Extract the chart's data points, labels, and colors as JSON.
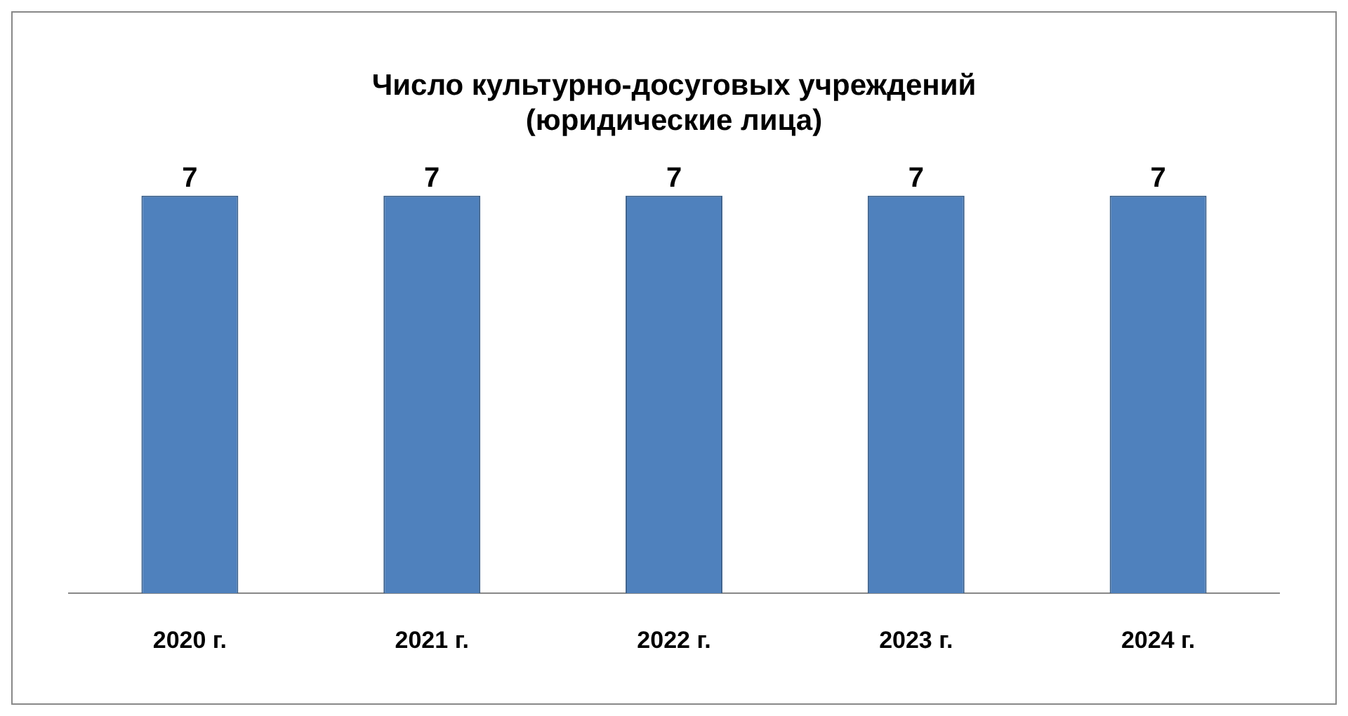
{
  "chart_data": {
    "type": "bar",
    "title": "Число культурно-досуговых учреждений\n(юридические лица)",
    "categories": [
      "2020 г.",
      "2021 г.",
      "2022 г.",
      "2023 г.",
      "2024 г."
    ],
    "values": [
      7,
      7,
      7,
      7,
      7
    ],
    "color": "#4f81bd",
    "data_labels": true,
    "tick_labels": "x",
    "grid": false,
    "legend": false
  }
}
